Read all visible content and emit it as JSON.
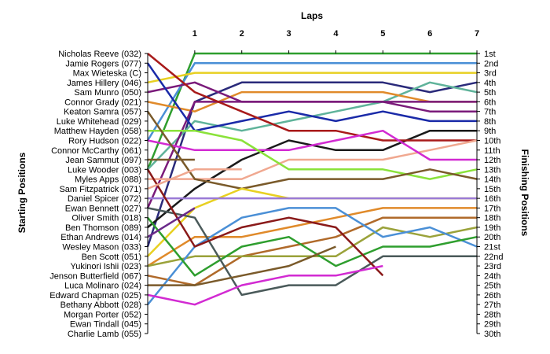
{
  "chart_data": {
    "type": "line",
    "title": "",
    "xlabel": "Laps",
    "ylabel_left": "Starting Positions",
    "ylabel_right": "Finishing Positions",
    "x": [
      0,
      1,
      2,
      3,
      4,
      5,
      6,
      7
    ],
    "x_tick_labels": [
      "1",
      "2",
      "3",
      "4",
      "5",
      "6",
      "7"
    ],
    "y_range": [
      1,
      30
    ],
    "grid": false,
    "starting_positions": [
      "Nicholas Reeve (032)",
      "Jamie Rogers (077)",
      "Max Wieteska (C)",
      "James Hillery (046)",
      "Sam Munro (050)",
      "Connor Grady (021)",
      "Keaton Samra (057)",
      "Luke Whitehead (029)",
      "Matthew Hayden (058)",
      "Rory Hudson (022)",
      "Connor McCarthy (061)",
      "Jean Sammut (097)",
      "Luke Wooder (003)",
      "Myles Apps (088)",
      "Sam Fitzpatrick (071)",
      "Daniel Spicer (072)",
      "Ewan Bennett (027)",
      "Oliver Smith (018)",
      "Ben Thomson (089)",
      "Ethan Andrews (014)",
      "Wesley Mason (033)",
      "Ben Scott (051)",
      "Yukinori Ishii (023)",
      "Jenson Butterfield (067)",
      "Luca Molinaro (024)",
      "Edward Chapman (025)",
      "Bethany Abbott (028)",
      "Morgan Porter (052)",
      "Ewan Tindall (045)",
      "Charlie Lamb (055)"
    ],
    "finishing_positions": [
      "1st",
      "2nd",
      "3rd",
      "4th",
      "5th",
      "6th",
      "7th",
      "8th",
      "9th",
      "10th",
      "11th",
      "12th",
      "13th",
      "14th",
      "15th",
      "16th",
      "17th",
      "18th",
      "19th",
      "20th",
      "21st",
      "22nd",
      "23rd",
      "24th",
      "25th",
      "26th",
      "27th",
      "28th",
      "29th",
      "30th"
    ],
    "series": [
      {
        "color": "#2e9e2e",
        "values": [
          13,
          1,
          1,
          1,
          1,
          1,
          1,
          1
        ]
      },
      {
        "color": "#4a8fd6",
        "values": [
          10,
          2,
          2,
          2,
          2,
          2,
          2,
          2
        ]
      },
      {
        "color": "#e8d022",
        "values": [
          4,
          3,
          3,
          3,
          3,
          3,
          3,
          3
        ]
      },
      {
        "color": "#2a2a7a",
        "values": [
          21,
          6,
          4,
          4,
          4,
          4,
          5,
          4
        ]
      },
      {
        "color": "#5fb39a",
        "values": [
          13,
          8,
          9,
          8,
          7,
          6,
          4,
          5
        ]
      },
      {
        "color": "#e08a2a",
        "values": [
          6,
          7,
          5,
          5,
          5,
          5,
          6,
          6
        ]
      },
      {
        "color": "#7a1a7a",
        "values": [
          17,
          6,
          6,
          6,
          6,
          6,
          6,
          6
        ]
      },
      {
        "color": "#7a1a7a",
        "values": [
          5,
          4,
          6,
          6,
          6,
          6,
          7,
          7
        ]
      },
      {
        "color": "#1a2aa8",
        "values": [
          2,
          9,
          8,
          7,
          8,
          7,
          8,
          8
        ]
      },
      {
        "color": "#1a1a1a",
        "values": [
          19,
          15,
          12,
          10,
          11,
          11,
          9,
          9
        ]
      },
      {
        "color": "#a81a1a",
        "values": [
          1,
          5,
          7,
          9,
          9,
          10,
          10,
          10
        ]
      },
      {
        "color": "#f0a890",
        "values": [
          14,
          14,
          14,
          12,
          12,
          12,
          11,
          10
        ]
      },
      {
        "color": "#d22ad2",
        "values": [
          10,
          11,
          11,
          11,
          10,
          9,
          12,
          12
        ]
      },
      {
        "color": "#8ae23a",
        "values": [
          9,
          9,
          10,
          13,
          13,
          13,
          14,
          13
        ]
      },
      {
        "color": "#7a5a2a",
        "values": [
          7,
          14,
          15,
          14,
          14,
          14,
          13,
          14
        ]
      },
      {
        "color": "#e8d022",
        "values": [
          22,
          17,
          15,
          16,
          16,
          16,
          16,
          16
        ]
      },
      {
        "color": "#9a7ad6",
        "values": [
          16,
          16,
          16,
          16,
          16,
          16,
          16,
          16
        ]
      },
      {
        "color": "#e08a2a",
        "values": [
          23,
          20,
          20,
          19,
          18,
          17,
          17,
          17
        ]
      },
      {
        "color": "#b06a2a",
        "values": [
          24,
          25,
          22,
          21,
          20,
          18,
          18,
          18
        ]
      },
      {
        "color": "#9aa23a",
        "values": [
          23,
          22,
          22,
          22,
          22,
          19,
          20,
          19
        ]
      },
      {
        "color": "#4a8fd6",
        "values": [
          27,
          21,
          18,
          17,
          17,
          20,
          19,
          21
        ]
      },
      {
        "color": "#2e9e2e",
        "values": [
          18,
          24,
          21,
          20,
          23,
          21,
          21,
          20
        ]
      },
      {
        "color": "#4a5a5a",
        "values": [
          17,
          18,
          26,
          25,
          25,
          22,
          22,
          22
        ]
      },
      {
        "color": "#8a1a1a",
        "values": [
          13,
          21,
          19,
          18,
          19,
          24,
          null,
          null
        ]
      },
      {
        "color": "#d22ad2",
        "values": [
          26,
          27,
          25,
          24,
          24,
          23,
          null,
          null
        ]
      },
      {
        "color": "#7a5a2a",
        "values": [
          25,
          25,
          24,
          23,
          21,
          null,
          null,
          null
        ]
      },
      {
        "color": "#f0a890",
        "values": [
          15,
          13,
          13,
          null,
          null,
          null,
          null,
          null
        ]
      },
      {
        "color": "#7a5a2a",
        "values": [
          12,
          12,
          null,
          null,
          null,
          null,
          null,
          null
        ]
      },
      {
        "color": "#6a2a8a",
        "values": [
          20,
          17,
          null,
          null,
          null,
          null,
          null,
          null
        ]
      }
    ]
  }
}
